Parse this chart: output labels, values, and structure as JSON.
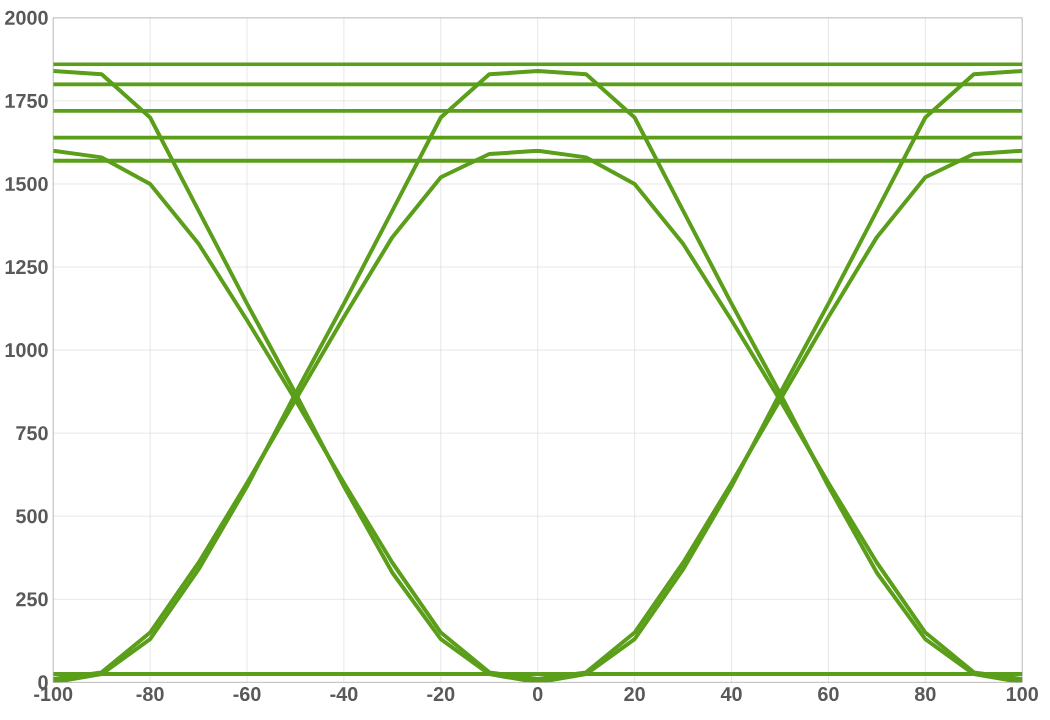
{
  "chart_data": {
    "type": "line",
    "xlim": [
      -100,
      100
    ],
    "ylim": [
      0,
      2000
    ],
    "xticks": [
      -100,
      -80,
      -60,
      -40,
      -20,
      0,
      20,
      40,
      60,
      80,
      100
    ],
    "yticks": [
      0,
      250,
      500,
      750,
      1000,
      1250,
      1500,
      1750,
      2000
    ],
    "grid": true,
    "marker": "none",
    "x": [
      -100,
      -90,
      -80,
      -70,
      -60,
      -50,
      -40,
      -30,
      -20,
      -10,
      0,
      10,
      20,
      30,
      40,
      50,
      60,
      70,
      80,
      90,
      100
    ],
    "series": [
      {
        "color": "#5a9e1a",
        "values": [
          1600,
          1580,
          1500,
          1320,
          1090,
          850,
          600,
          360,
          150,
          30,
          10,
          30,
          150,
          360,
          600,
          850,
          1100,
          1340,
          1520,
          1590,
          1600
        ]
      },
      {
        "color": "#5a9e1a",
        "values": [
          1840,
          1830,
          1700,
          1420,
          1140,
          870,
          590,
          330,
          130,
          25,
          0,
          25,
          130,
          340,
          590,
          870,
          1140,
          1420,
          1700,
          1830,
          1840
        ]
      },
      {
        "color": "#5a9e1a",
        "values": [
          10,
          30,
          150,
          360,
          600,
          850,
          1100,
          1340,
          1520,
          1590,
          1600,
          1580,
          1500,
          1320,
          1090,
          850,
          600,
          360,
          150,
          30,
          10
        ]
      },
      {
        "color": "#5a9e1a",
        "values": [
          0,
          25,
          130,
          340,
          590,
          870,
          1140,
          1420,
          1700,
          1830,
          1840,
          1830,
          1700,
          1420,
          1140,
          870,
          590,
          330,
          130,
          25,
          0
        ]
      },
      {
        "color": "#5a9e1a",
        "values": [
          1570,
          1570,
          1570,
          1570,
          1570,
          1570,
          1570,
          1570,
          1570,
          1570,
          1570,
          1570,
          1570,
          1570,
          1570,
          1570,
          1570,
          1570,
          1570,
          1570,
          1570
        ]
      },
      {
        "color": "#5a9e1a",
        "values": [
          1640,
          1640,
          1640,
          1640,
          1640,
          1640,
          1640,
          1640,
          1640,
          1640,
          1640,
          1640,
          1640,
          1640,
          1640,
          1640,
          1640,
          1640,
          1640,
          1640,
          1640
        ]
      },
      {
        "color": "#5a9e1a",
        "values": [
          1720,
          1720,
          1720,
          1720,
          1720,
          1720,
          1720,
          1720,
          1720,
          1720,
          1720,
          1720,
          1720,
          1720,
          1720,
          1720,
          1720,
          1720,
          1720,
          1720,
          1720
        ]
      },
      {
        "color": "#5a9e1a",
        "values": [
          1800,
          1800,
          1800,
          1800,
          1800,
          1800,
          1800,
          1800,
          1800,
          1800,
          1800,
          1800,
          1800,
          1800,
          1800,
          1800,
          1800,
          1800,
          1800,
          1800,
          1800
        ]
      },
      {
        "color": "#5a9e1a",
        "values": [
          1860,
          1860,
          1860,
          1860,
          1860,
          1860,
          1860,
          1860,
          1860,
          1860,
          1860,
          1860,
          1860,
          1860,
          1860,
          1860,
          1860,
          1860,
          1860,
          1860,
          1860
        ]
      },
      {
        "color": "#5a9e1a",
        "values": [
          25,
          25,
          25,
          25,
          25,
          25,
          25,
          25,
          25,
          25,
          25,
          25,
          25,
          25,
          25,
          25,
          25,
          25,
          25,
          25,
          25
        ]
      }
    ]
  }
}
